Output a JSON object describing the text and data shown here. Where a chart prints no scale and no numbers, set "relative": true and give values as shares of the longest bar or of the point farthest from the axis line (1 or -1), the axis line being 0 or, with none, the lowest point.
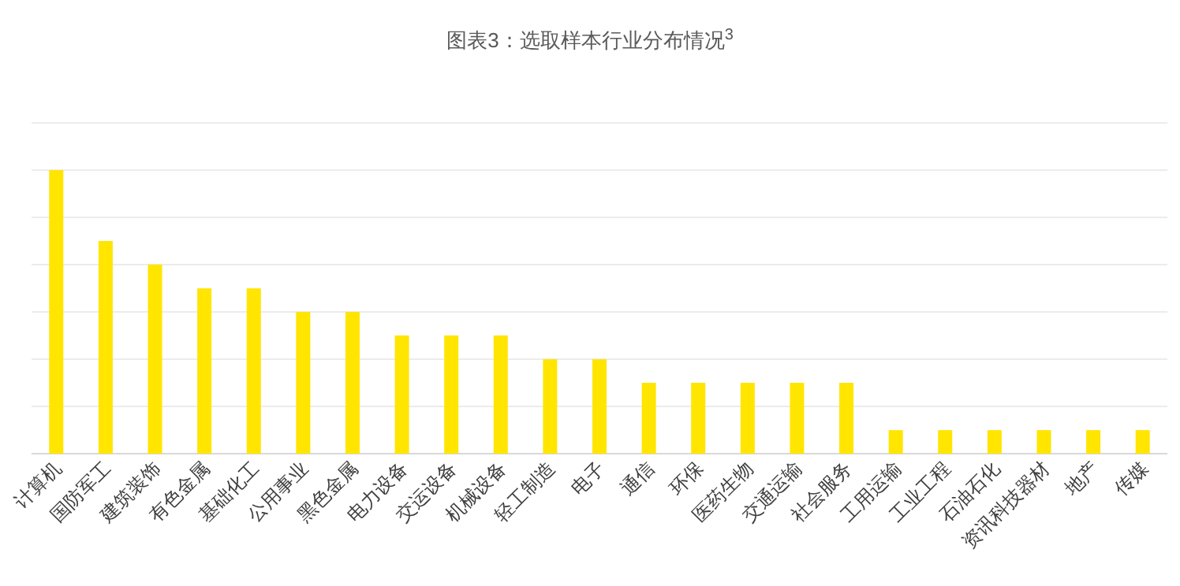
{
  "chart_data": {
    "type": "bar",
    "title": "图表3：选取样本行业分布情况$^{3}$",
    "relative": true,
    "grid": "y",
    "categories": [
      "计算机",
      "国防军工",
      "建筑装饰",
      "有色金属",
      "基础化工",
      "公用事业",
      "黑色金属",
      "电力设备",
      "交运设备",
      "机械设备",
      "轻工制造",
      "电子",
      "通信",
      "环保",
      "医药生物",
      "交通运输",
      "社会服务",
      "工用运输",
      "工业工程",
      "石油石化",
      "资讯科技器材",
      "地产",
      "传媒"
    ],
    "values": [
      1,
      0.75,
      0.667,
      0.583,
      0.583,
      0.5,
      0.5,
      0.417,
      0.417,
      0.417,
      0.333,
      0.333,
      0.25,
      0.25,
      0.25,
      0.25,
      0.25,
      0.083,
      0.083,
      0.083,
      0.083,
      0.083,
      0.083
    ],
    "color": "#ffe500"
  }
}
